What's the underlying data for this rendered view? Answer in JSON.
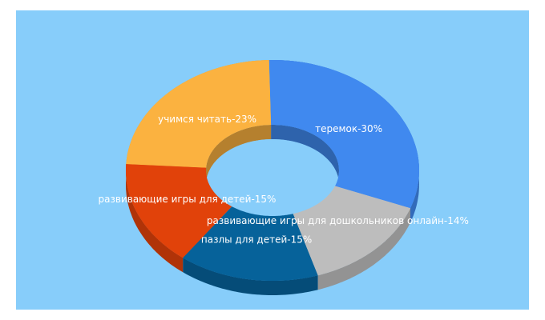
{
  "chart_data": {
    "type": "pie",
    "style": "3d-donut",
    "title": "",
    "background_color": "#87cdfa",
    "slices": [
      {
        "label": "теремок-30%",
        "value": 30,
        "color": "#4089ef"
      },
      {
        "label": "учимся читать-23%",
        "value": 23,
        "color": "#fbb240"
      },
      {
        "label": "развивающие игры для детей-15%",
        "value": 15,
        "color": "#e1420a"
      },
      {
        "label": "пазлы для детей-15%",
        "value": 15,
        "color": "#06629a"
      },
      {
        "label": "развивающие игры для дошкольников онлайн-14%",
        "value": 14,
        "color": "#bdbdbd"
      }
    ]
  }
}
